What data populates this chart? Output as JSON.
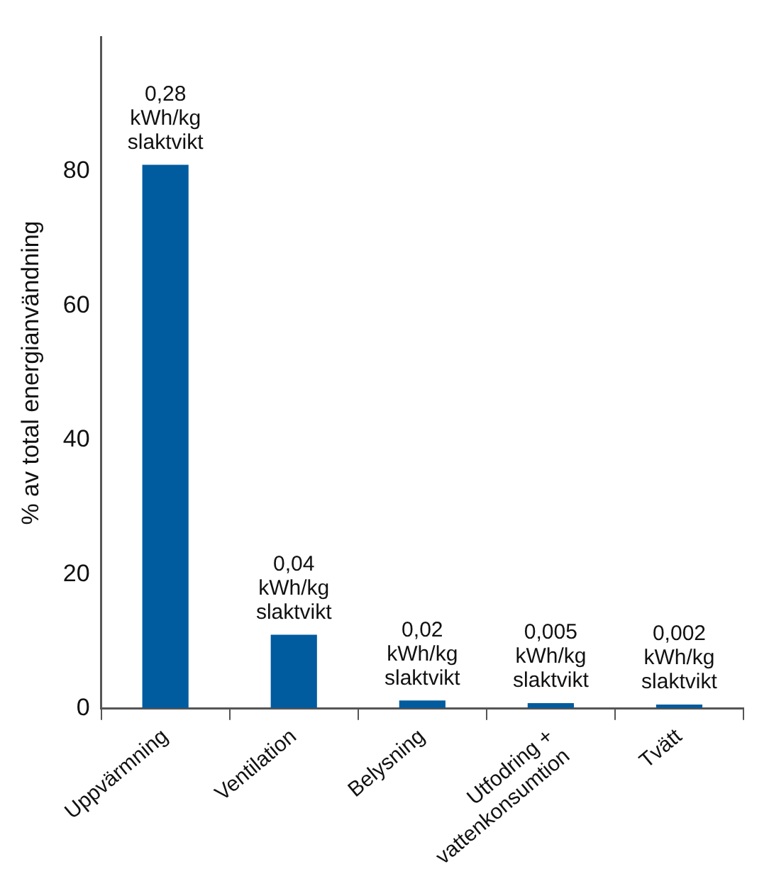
{
  "chart_data": {
    "type": "bar",
    "ylabel": "% av total energianvändning",
    "categories": [
      "Uppvärmning",
      "Ventilation",
      "Belysning",
      "Utfodring + vattenkonsumtion",
      "Tvätt"
    ],
    "values": [
      81,
      11,
      1.2,
      0.8,
      0.6
    ],
    "annotations": [
      {
        "text": "0,28\nkWh/kg\nslaktvikt",
        "x": "Uppvärmning",
        "y": 81
      },
      {
        "text": "0,04\nkWh/kg\nslaktvikt",
        "x": "Ventilation",
        "y": 11
      },
      {
        "text": "0,02\nkWh/kg\nslaktvikt",
        "x": "Belysning",
        "y": 1.2
      },
      {
        "text": "0,005\nkWh/kg\nslaktvikt",
        "x": "Utfodring + vattenkonsumtion",
        "y": 0.8
      },
      {
        "text": "0,002\nkWh/kg\nslaktvikt",
        "x": "Tvätt",
        "y": 0.6
      }
    ],
    "color": "#005b9f",
    "ylim": [
      0,
      100
    ],
    "yticks": [
      0,
      20,
      40,
      60,
      80
    ],
    "grid": false,
    "legend": false
  }
}
